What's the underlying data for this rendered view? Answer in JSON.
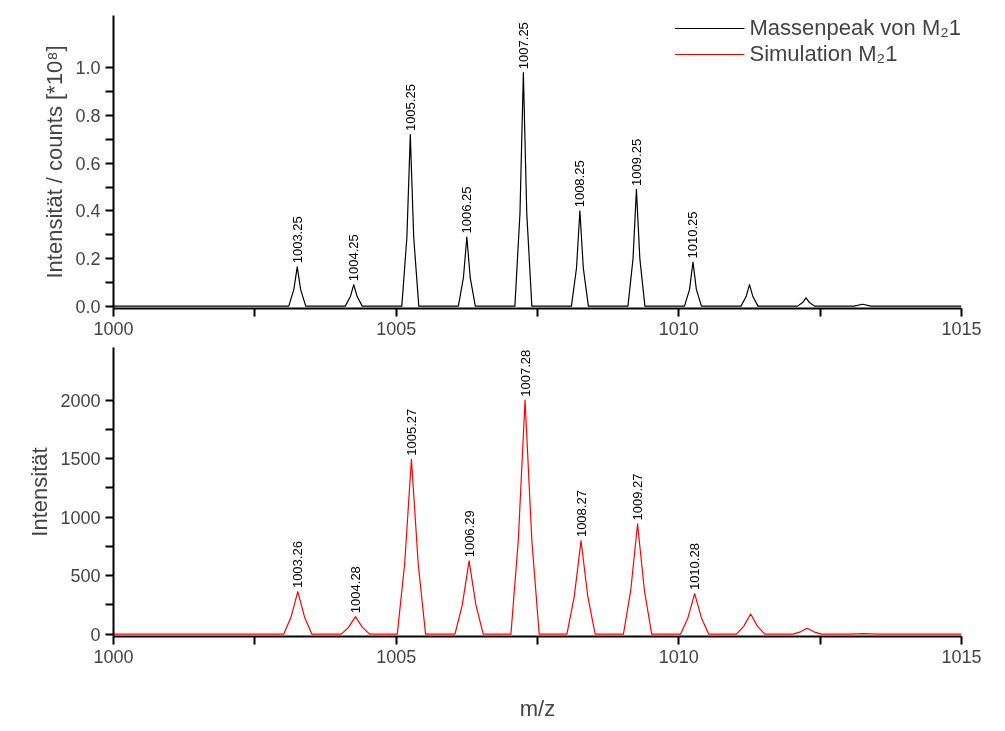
{
  "chart_data": [
    {
      "type": "line",
      "ylabel": "Intensität / counts [*10⁸]",
      "legend": "top right",
      "xlim": [
        1000,
        1015
      ],
      "ylim": [
        -0.01,
        1.22
      ],
      "xticks": [
        1000,
        {
          "value": 1002.5,
          "label": null
        },
        1005,
        {
          "value": 1007.5,
          "label": null
        },
        1010,
        {
          "value": 1012.5,
          "label": null
        },
        1015
      ],
      "yticks": [
        {
          "value": 0,
          "label": "0.0"
        },
        {
          "value": 0.1,
          "label": null
        },
        0.2,
        {
          "value": 0.3,
          "label": null
        },
        0.4,
        {
          "value": 0.5,
          "label": null
        },
        0.6,
        {
          "value": 0.7,
          "label": null
        },
        0.8,
        {
          "value": 0.9,
          "label": null
        },
        {
          "value": 1.0,
          "label": "1.0"
        }
      ],
      "series": [
        {
          "name": "Massenpeak von M₂1",
          "color": "#000000",
          "x": [
            1000,
            1003.1,
            1003.19,
            1003.25,
            1003.31,
            1003.4,
            1004.1,
            1004.19,
            1004.25,
            1004.31,
            1004.4,
            1005.1,
            1005.19,
            1005.25,
            1005.31,
            1005.4,
            1006.1,
            1006.19,
            1006.25,
            1006.31,
            1006.4,
            1007.1,
            1007.19,
            1007.25,
            1007.31,
            1007.4,
            1008.1,
            1008.19,
            1008.25,
            1008.31,
            1008.4,
            1009.1,
            1009.19,
            1009.25,
            1009.31,
            1009.4,
            1010.1,
            1010.19,
            1010.25,
            1010.31,
            1010.4,
            1011.1,
            1011.19,
            1011.25,
            1011.31,
            1011.4,
            1012.1,
            1012.19,
            1012.25,
            1012.31,
            1012.4,
            1013.1,
            1013.25,
            1013.4,
            1015
          ],
          "values": [
            0,
            0,
            0.07,
            0.165,
            0.07,
            0,
            0,
            0.04,
            0.09,
            0.04,
            0,
            0,
            0.29,
            0.72,
            0.29,
            0,
            0,
            0.12,
            0.29,
            0.12,
            0,
            0,
            0.39,
            0.98,
            0.39,
            0,
            0,
            0.16,
            0.4,
            0.16,
            0,
            0,
            0.2,
            0.49,
            0.2,
            0,
            0,
            0.07,
            0.185,
            0.07,
            0,
            0,
            0.04,
            0.09,
            0.04,
            0,
            0,
            0.015,
            0.035,
            0.015,
            0,
            0,
            0.008,
            0,
            0
          ]
        }
      ],
      "annotations": [
        {
          "text": "1003.25",
          "x": 1003.25,
          "y": 0.165
        },
        {
          "text": "1004.25",
          "x": 1004.25,
          "y": 0.09
        },
        {
          "text": "1005.25",
          "x": 1005.25,
          "y": 0.72
        },
        {
          "text": "1006.25",
          "x": 1006.25,
          "y": 0.29
        },
        {
          "text": "1007.25",
          "x": 1007.25,
          "y": 0.98
        },
        {
          "text": "1008.25",
          "x": 1008.25,
          "y": 0.4
        },
        {
          "text": "1009.25",
          "x": 1009.25,
          "y": 0.49
        },
        {
          "text": "1010.25",
          "x": 1010.25,
          "y": 0.185
        }
      ]
    },
    {
      "type": "line",
      "ylabel": "Intensität",
      "xlabel": "m/z",
      "xlim": [
        1000,
        1015
      ],
      "ylim": [
        -20,
        2450
      ],
      "xticks": [
        1000,
        {
          "value": 1002.5,
          "label": null
        },
        1005,
        {
          "value": 1007.5,
          "label": null
        },
        1010,
        {
          "value": 1012.5,
          "label": null
        },
        1015
      ],
      "yticks": [
        0,
        {
          "value": 250,
          "label": null
        },
        500,
        {
          "value": 750,
          "label": null
        },
        1000,
        {
          "value": 1250,
          "label": null
        },
        1500,
        {
          "value": 1750,
          "label": null
        },
        2000
      ],
      "series": [
        {
          "name": "Simulation M₂1",
          "color": "#ff0000",
          "x": [
            1000,
            1003.01,
            1003.14,
            1003.26,
            1003.38,
            1003.51,
            1004.03,
            1004.16,
            1004.28,
            1004.4,
            1004.53,
            1005.02,
            1005.15,
            1005.27,
            1005.39,
            1005.52,
            1006.04,
            1006.17,
            1006.29,
            1006.41,
            1006.54,
            1007.03,
            1007.16,
            1007.28,
            1007.4,
            1007.53,
            1008.02,
            1008.15,
            1008.27,
            1008.39,
            1008.52,
            1009.02,
            1009.15,
            1009.27,
            1009.39,
            1009.52,
            1010.03,
            1010.16,
            1010.28,
            1010.4,
            1010.53,
            1011.02,
            1011.15,
            1011.27,
            1011.39,
            1011.52,
            1012.02,
            1012.15,
            1012.27,
            1012.39,
            1012.52,
            1013.02,
            1013.27,
            1013.52,
            1015
          ],
          "values": [
            0,
            0,
            145,
            364,
            145,
            0,
            0,
            60,
            150,
            60,
            0,
            0,
            600,
            1495,
            600,
            0,
            0,
            250,
            627,
            250,
            0,
            0,
            800,
            2000,
            800,
            0,
            0,
            320,
            800,
            320,
            0,
            0,
            377,
            942,
            377,
            0,
            0,
            139,
            347,
            139,
            0,
            0,
            69,
            173,
            69,
            0,
            0,
            20,
            50,
            20,
            0,
            0,
            5,
            0,
            0
          ]
        }
      ],
      "annotations": [
        {
          "text": "1003.26",
          "x": 1003.26,
          "y": 364
        },
        {
          "text": "1004.28",
          "x": 1004.28,
          "y": 150
        },
        {
          "text": "1005.27",
          "x": 1005.27,
          "y": 1495
        },
        {
          "text": "1006.29",
          "x": 1006.29,
          "y": 627
        },
        {
          "text": "1007.28",
          "x": 1007.28,
          "y": 2000
        },
        {
          "text": "1008.27",
          "x": 1008.27,
          "y": 800
        },
        {
          "text": "1009.27",
          "x": 1009.27,
          "y": 942
        },
        {
          "text": "1010.28",
          "x": 1010.28,
          "y": 347
        }
      ]
    }
  ]
}
